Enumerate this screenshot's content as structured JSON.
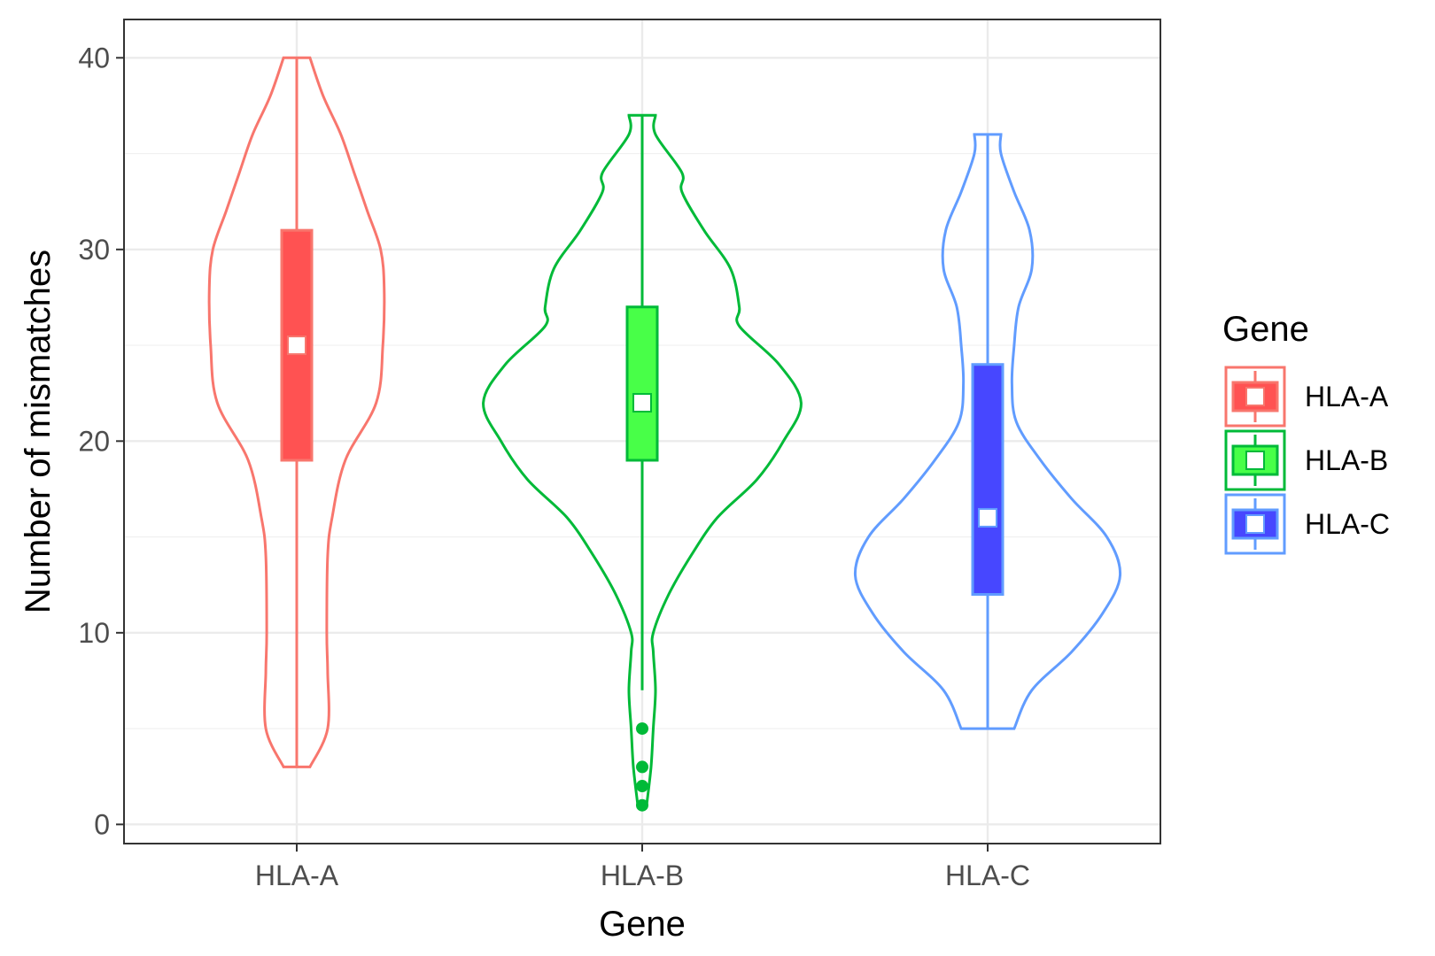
{
  "chart_data": {
    "type": "violin",
    "xlabel": "Gene",
    "ylabel": "Number of mismatches",
    "ylim": [
      -1,
      42
    ],
    "yticks": [
      0,
      10,
      20,
      30,
      40
    ],
    "grid": true,
    "legend": {
      "title": "Gene",
      "placement": "right"
    },
    "categories": [
      "HLA-A",
      "HLA-B",
      "HLA-C"
    ],
    "series": [
      {
        "name": "HLA-A",
        "color": "#F8766D",
        "fill": "#FF5252",
        "box": {
          "q1": 19,
          "median": 25,
          "q3": 31,
          "whisker_low": 3,
          "whisker_high": 40
        },
        "min": 3,
        "max": 40,
        "outliers": [],
        "density": [
          [
            3,
            0.03
          ],
          [
            5,
            0.07
          ],
          [
            8,
            0.07
          ],
          [
            10,
            0.068
          ],
          [
            14,
            0.07
          ],
          [
            16,
            0.08
          ],
          [
            19,
            0.11
          ],
          [
            22,
            0.18
          ],
          [
            25,
            0.195
          ],
          [
            28,
            0.198
          ],
          [
            30,
            0.19
          ],
          [
            32,
            0.16
          ],
          [
            34,
            0.13
          ],
          [
            36,
            0.1
          ],
          [
            38,
            0.06
          ],
          [
            40,
            0.03
          ]
        ]
      },
      {
        "name": "HLA-B",
        "color": "#00BA38",
        "fill": "#48FF48",
        "box": {
          "q1": 19,
          "median": 22,
          "q3": 27,
          "whisker_low": 7,
          "whisker_high": 37
        },
        "min": 1,
        "max": 37,
        "outliers": [
          1,
          2,
          3,
          5
        ],
        "density": [
          [
            1,
            0.01
          ],
          [
            3,
            0.02
          ],
          [
            5,
            0.025
          ],
          [
            7,
            0.03
          ],
          [
            9,
            0.025
          ],
          [
            10,
            0.025
          ],
          [
            12,
            0.06
          ],
          [
            14,
            0.11
          ],
          [
            16,
            0.17
          ],
          [
            18,
            0.26
          ],
          [
            20,
            0.32
          ],
          [
            22,
            0.36
          ],
          [
            24,
            0.31
          ],
          [
            26,
            0.22
          ],
          [
            27,
            0.22
          ],
          [
            29,
            0.2
          ],
          [
            31,
            0.14
          ],
          [
            33,
            0.09
          ],
          [
            34,
            0.09
          ],
          [
            36,
            0.03
          ],
          [
            37,
            0.03
          ]
        ]
      },
      {
        "name": "HLA-C",
        "color": "#619CFF",
        "fill": "#4747FF",
        "box": {
          "q1": 12,
          "median": 16,
          "q3": 24,
          "whisker_low": 5,
          "whisker_high": 36
        },
        "min": 5,
        "max": 36,
        "outliers": [],
        "density": [
          [
            5,
            0.06
          ],
          [
            7,
            0.1
          ],
          [
            9,
            0.19
          ],
          [
            11,
            0.26
          ],
          [
            13,
            0.3
          ],
          [
            15,
            0.27
          ],
          [
            17,
            0.19
          ],
          [
            19,
            0.12
          ],
          [
            21,
            0.065
          ],
          [
            23,
            0.055
          ],
          [
            25,
            0.06
          ],
          [
            27,
            0.07
          ],
          [
            29,
            0.1
          ],
          [
            31,
            0.095
          ],
          [
            33,
            0.06
          ],
          [
            35,
            0.03
          ],
          [
            36,
            0.03
          ]
        ]
      }
    ]
  }
}
